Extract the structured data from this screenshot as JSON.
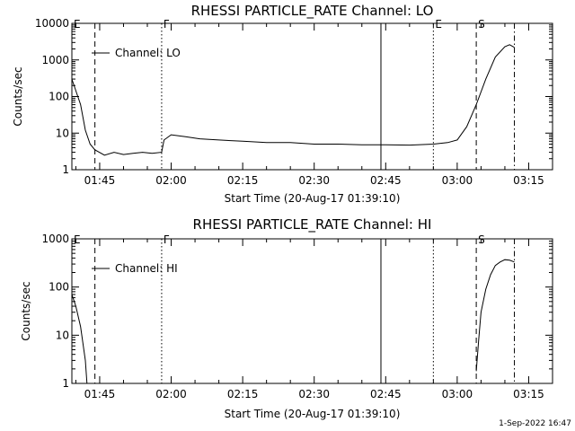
{
  "footer_date": "1-Sep-2022 16:47",
  "chart_data": [
    {
      "type": "line",
      "title": "RHESSI PARTICLE_RATE Channel: LO",
      "xlabel": "Start Time (20-Aug-17 01:39:10)",
      "ylabel": "Counts/sec",
      "yscale": "log",
      "ylim": [
        1,
        10000
      ],
      "xlim": [
        "01:39:10",
        "03:20:00"
      ],
      "x_ticks": [
        "01:45",
        "02:00",
        "02:15",
        "02:30",
        "02:45",
        "03:00",
        "03:15"
      ],
      "y_ticks": [
        "1",
        "10",
        "100",
        "1000",
        "10000"
      ],
      "legend": {
        "label": "Channel: LO",
        "placement": "top-left"
      },
      "markers": [
        {
          "label": "E",
          "time": "01:39:10",
          "style": "solid"
        },
        {
          "label": "",
          "time": "01:44:00",
          "style": "dashed"
        },
        {
          "label": "F",
          "time": "01:58:00",
          "style": "dotted"
        },
        {
          "label": "",
          "time": "02:44:00",
          "style": "solid"
        },
        {
          "label": "E",
          "time": "02:55:00",
          "style": "dotted"
        },
        {
          "label": "S",
          "time": "03:04:00",
          "style": "dashed"
        },
        {
          "label": "",
          "time": "03:12:00",
          "style": "dashdot"
        }
      ],
      "series": [
        {
          "x": [
            "01:39:10",
            "01:41:00",
            "01:42:00",
            "01:43:00",
            "01:44:00",
            "01:46:00",
            "01:48:00",
            "01:50:00",
            "01:52:00",
            "01:54:00",
            "01:56:00",
            "01:58:00",
            "01:58:30",
            "02:00:00",
            "02:03:00",
            "02:06:00",
            "02:10:00",
            "02:15:00",
            "02:20:00",
            "02:25:00",
            "02:30:00",
            "02:35:00",
            "02:40:00",
            "02:45:00",
            "02:50:00",
            "02:55:00",
            "02:58:00",
            "03:00:00",
            "03:02:00",
            "03:04:00",
            "03:06:00",
            "03:08:00",
            "03:10:00",
            "03:11:00",
            "03:12:00"
          ],
          "values": [
            300,
            60,
            12,
            5,
            3.5,
            2.5,
            3.0,
            2.6,
            2.8,
            3.0,
            2.8,
            3.0,
            6.5,
            9,
            8,
            7,
            6.5,
            6,
            5.5,
            5.5,
            5.0,
            5.0,
            4.8,
            4.8,
            4.7,
            5.0,
            5.5,
            6.5,
            15,
            60,
            300,
            1200,
            2300,
            2600,
            2200
          ]
        }
      ]
    },
    {
      "type": "line",
      "title": "RHESSI PARTICLE_RATE Channel: HI",
      "xlabel": "Start Time (20-Aug-17 01:39:10)",
      "ylabel": "Counts/sec",
      "yscale": "log",
      "ylim": [
        1,
        1000
      ],
      "xlim": [
        "01:39:10",
        "03:20:00"
      ],
      "x_ticks": [
        "01:45",
        "02:00",
        "02:15",
        "02:30",
        "02:45",
        "03:00",
        "03:15"
      ],
      "y_ticks": [
        "1",
        "10",
        "100",
        "1000"
      ],
      "legend": {
        "label": "Channel: HI",
        "placement": "top-left"
      },
      "markers": [
        {
          "label": "E",
          "time": "01:39:10",
          "style": "solid"
        },
        {
          "label": "",
          "time": "01:44:00",
          "style": "dashed"
        },
        {
          "label": "F",
          "time": "01:58:00",
          "style": "dotted"
        },
        {
          "label": "",
          "time": "02:44:00",
          "style": "solid"
        },
        {
          "label": "",
          "time": "02:55:00",
          "style": "dotted"
        },
        {
          "label": "S",
          "time": "03:04:00",
          "style": "dashed"
        },
        {
          "label": "",
          "time": "03:12:00",
          "style": "dashdot"
        }
      ],
      "series": [
        {
          "x": [
            "01:39:10",
            "01:40:00",
            "01:41:00",
            "01:42:00",
            "01:42:20"
          ],
          "values": [
            70,
            40,
            15,
            3,
            1
          ]
        },
        {
          "x": [
            "03:04:00",
            "03:04:30",
            "03:05:00",
            "03:06:00",
            "03:07:00",
            "03:08:00",
            "03:09:00",
            "03:10:00",
            "03:11:00",
            "03:12:00"
          ],
          "values": [
            1.8,
            8,
            30,
            90,
            180,
            280,
            330,
            370,
            360,
            330
          ]
        }
      ]
    }
  ]
}
